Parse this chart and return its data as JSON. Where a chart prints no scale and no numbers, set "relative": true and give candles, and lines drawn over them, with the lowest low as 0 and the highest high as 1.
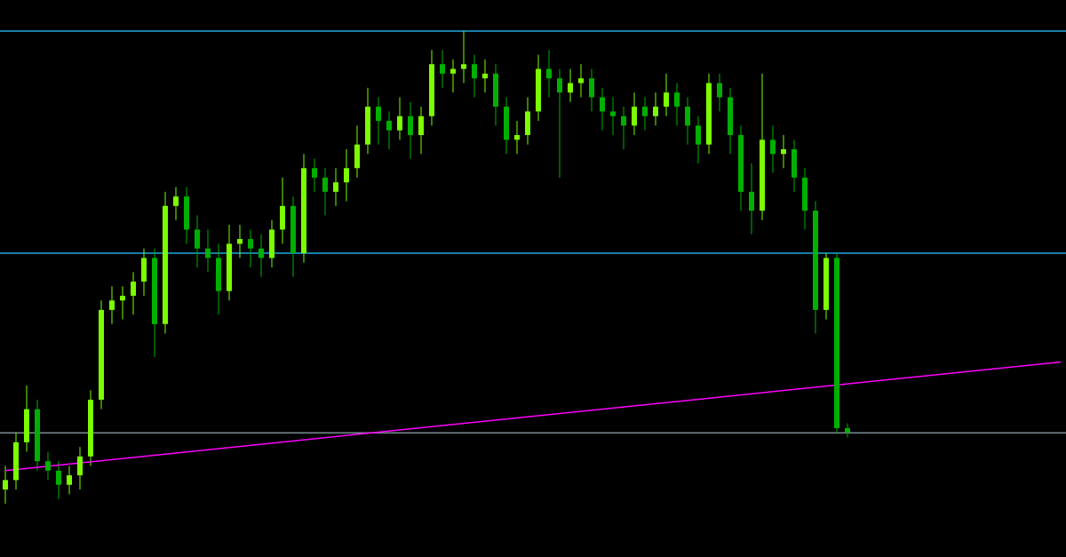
{
  "chart_data": {
    "type": "candlestick",
    "relative": true,
    "legend": false,
    "categories": [
      null,
      null,
      null,
      null,
      null,
      null,
      null,
      null,
      null,
      null,
      null,
      null,
      null,
      null,
      null,
      null,
      null,
      null,
      null,
      null,
      null,
      null,
      null,
      null,
      null,
      null,
      null,
      null,
      null,
      null,
      null,
      null,
      null,
      null,
      null,
      null,
      null,
      null,
      null,
      null,
      null,
      null,
      null,
      null,
      null,
      null,
      null,
      null,
      null,
      null,
      null,
      null,
      null,
      null,
      null,
      null,
      null,
      null,
      null,
      null,
      null,
      null,
      null,
      null,
      null,
      null,
      null,
      null,
      null,
      null,
      null,
      null,
      null,
      null,
      null,
      null,
      null,
      null,
      null,
      null,
      null,
      null,
      null,
      null,
      null,
      null,
      null,
      null,
      null,
      null,
      null,
      null,
      null,
      null,
      null,
      null,
      null,
      null,
      null,
      null
    ],
    "series": [
      {
        "type": "candlestick",
        "colors": [
          "#7cfc00",
          "#7cfc00",
          "#7cfc00",
          "#00b000",
          "#00b000",
          "#00b000",
          "#7cfc00",
          "#7cfc00",
          "#7cfc00",
          "#7cfc00",
          "#7cfc00",
          "#7cfc00",
          "#7cfc00",
          "#7cfc00",
          "#00b000",
          "#7cfc00",
          "#7cfc00",
          "#00b000",
          "#00b000",
          "#00b000",
          "#00b000",
          "#7cfc00",
          "#7cfc00",
          "#00b000",
          "#00b000",
          "#7cfc00",
          "#7cfc00",
          "#00b000",
          "#7cfc00",
          "#00b000",
          "#00b000",
          "#7cfc00",
          "#7cfc00",
          "#7cfc00",
          "#7cfc00",
          "#00b000",
          "#00b000",
          "#7cfc00",
          "#00b000",
          "#7cfc00",
          "#7cfc00",
          "#00b000",
          "#7cfc00",
          "#7cfc00",
          "#00b000",
          "#7cfc00",
          "#00b000",
          "#00b000",
          "#7cfc00",
          "#7cfc00",
          "#7cfc00",
          "#00b000",
          "#00b000",
          "#7cfc00",
          "#7cfc00",
          "#00b000",
          "#00b000",
          "#00b000",
          "#00b000",
          "#7cfc00",
          "#00b000",
          "#7cfc00",
          "#7cfc00",
          "#00b000",
          "#00b000",
          "#00b000",
          "#7cfc00",
          "#00b000",
          "#00b000",
          "#00b000",
          "#00b000",
          "#7cfc00",
          "#00b000",
          "#7cfc00",
          "#00b000",
          "#00b000",
          "#00b000",
          "#7cfc00",
          "#00b000",
          "#00b000",
          null,
          null,
          null,
          null,
          null,
          null,
          null,
          null,
          null,
          null,
          null,
          null,
          null,
          null,
          null,
          null,
          null,
          null,
          null,
          null
        ],
        "ohlc": [
          [
            0.03,
            0.08,
            0,
            0.05
          ],
          [
            0.05,
            0.15,
            0.03,
            0.13
          ],
          [
            0.13,
            0.25,
            0.11,
            0.2
          ],
          [
            0.2,
            0.22,
            0.07,
            0.09
          ],
          [
            0.09,
            0.11,
            0.05,
            0.07
          ],
          [
            0.07,
            0.09,
            0.01,
            0.04
          ],
          [
            0.04,
            0.08,
            0.02,
            0.06
          ],
          [
            0.06,
            0.12,
            0.03,
            0.1
          ],
          [
            0.1,
            0.24,
            0.08,
            0.22
          ],
          [
            0.22,
            0.43,
            0.2,
            0.41
          ],
          [
            0.41,
            0.46,
            0.38,
            0.43
          ],
          [
            0.43,
            0.46,
            0.39,
            0.44
          ],
          [
            0.44,
            0.49,
            0.4,
            0.47
          ],
          [
            0.47,
            0.54,
            0.44,
            0.52
          ],
          [
            0.52,
            0.54,
            0.31,
            0.38
          ],
          [
            0.38,
            0.66,
            0.36,
            0.63
          ],
          [
            0.63,
            0.67,
            0.6,
            0.65
          ],
          [
            0.65,
            0.67,
            0.55,
            0.58
          ],
          [
            0.58,
            0.61,
            0.5,
            0.54
          ],
          [
            0.54,
            0.58,
            0.49,
            0.52
          ],
          [
            0.52,
            0.55,
            0.4,
            0.45
          ],
          [
            0.45,
            0.59,
            0.43,
            0.55
          ],
          [
            0.55,
            0.59,
            0.52,
            0.56
          ],
          [
            0.56,
            0.58,
            0.5,
            0.54
          ],
          [
            0.54,
            0.57,
            0.48,
            0.52
          ],
          [
            0.52,
            0.6,
            0.5,
            0.58
          ],
          [
            0.58,
            0.69,
            0.55,
            0.63
          ],
          [
            0.63,
            0.65,
            0.48,
            0.53
          ],
          [
            0.53,
            0.74,
            0.51,
            0.71
          ],
          [
            0.71,
            0.73,
            0.66,
            0.69
          ],
          [
            0.69,
            0.71,
            0.61,
            0.66
          ],
          [
            0.66,
            0.71,
            0.63,
            0.68
          ],
          [
            0.68,
            0.75,
            0.64,
            0.71
          ],
          [
            0.71,
            0.8,
            0.69,
            0.76
          ],
          [
            0.76,
            0.88,
            0.74,
            0.84
          ],
          [
            0.84,
            0.86,
            0.76,
            0.81
          ],
          [
            0.81,
            0.83,
            0.75,
            0.79
          ],
          [
            0.79,
            0.86,
            0.77,
            0.82
          ],
          [
            0.82,
            0.85,
            0.73,
            0.78
          ],
          [
            0.78,
            0.84,
            0.74,
            0.82
          ],
          [
            0.82,
            0.96,
            0.8,
            0.93
          ],
          [
            0.93,
            0.96,
            0.88,
            0.91
          ],
          [
            0.91,
            0.94,
            0.87,
            0.92
          ],
          [
            0.92,
            1.0,
            0.89,
            0.93
          ],
          [
            0.93,
            0.95,
            0.86,
            0.9
          ],
          [
            0.9,
            0.94,
            0.87,
            0.91
          ],
          [
            0.91,
            0.93,
            0.8,
            0.84
          ],
          [
            0.84,
            0.86,
            0.74,
            0.77
          ],
          [
            0.77,
            0.81,
            0.74,
            0.78
          ],
          [
            0.78,
            0.86,
            0.76,
            0.83
          ],
          [
            0.83,
            0.95,
            0.81,
            0.92
          ],
          [
            0.92,
            0.96,
            0.86,
            0.9
          ],
          [
            0.9,
            0.92,
            0.69,
            0.87
          ],
          [
            0.87,
            0.92,
            0.85,
            0.89
          ],
          [
            0.89,
            0.93,
            0.86,
            0.9
          ],
          [
            0.9,
            0.92,
            0.83,
            0.86
          ],
          [
            0.86,
            0.88,
            0.79,
            0.83
          ],
          [
            0.83,
            0.86,
            0.78,
            0.82
          ],
          [
            0.82,
            0.84,
            0.75,
            0.8
          ],
          [
            0.8,
            0.87,
            0.78,
            0.84
          ],
          [
            0.84,
            0.86,
            0.79,
            0.82
          ],
          [
            0.82,
            0.87,
            0.8,
            0.84
          ],
          [
            0.84,
            0.91,
            0.82,
            0.87
          ],
          [
            0.87,
            0.89,
            0.8,
            0.84
          ],
          [
            0.84,
            0.86,
            0.76,
            0.8
          ],
          [
            0.8,
            0.82,
            0.72,
            0.76
          ],
          [
            0.76,
            0.91,
            0.74,
            0.89
          ],
          [
            0.89,
            0.91,
            0.83,
            0.86
          ],
          [
            0.86,
            0.88,
            0.74,
            0.78
          ],
          [
            0.78,
            0.8,
            0.62,
            0.66
          ],
          [
            0.66,
            0.72,
            0.57,
            0.62
          ],
          [
            0.62,
            0.91,
            0.6,
            0.77
          ],
          [
            0.77,
            0.8,
            0.7,
            0.74
          ],
          [
            0.74,
            0.78,
            0.71,
            0.75
          ],
          [
            0.75,
            0.77,
            0.66,
            0.69
          ],
          [
            0.69,
            0.71,
            0.58,
            0.62
          ],
          [
            0.62,
            0.64,
            0.36,
            0.41
          ],
          [
            0.41,
            0.53,
            0.39,
            0.52
          ],
          [
            0.52,
            0.53,
            0.15,
            0.16
          ],
          [
            0.16,
            0.17,
            0.14,
            0.15
          ],
          null,
          null,
          null,
          null,
          null,
          null,
          null,
          null,
          null,
          null,
          null,
          null,
          null,
          null,
          null,
          null,
          null,
          null,
          null,
          null
        ]
      },
      {
        "type": "line",
        "color": "#ff00ff",
        "marker": "none",
        "values": [
          0.07,
          null,
          null,
          null,
          null,
          null,
          null,
          null,
          null,
          null,
          null,
          null,
          null,
          null,
          null,
          null,
          null,
          null,
          null,
          null,
          null,
          null,
          null,
          null,
          null,
          null,
          null,
          null,
          null,
          null,
          null,
          null,
          null,
          null,
          null,
          null,
          null,
          null,
          null,
          null,
          null,
          null,
          null,
          null,
          null,
          null,
          null,
          null,
          null,
          null,
          null,
          null,
          null,
          null,
          null,
          null,
          null,
          null,
          null,
          null,
          null,
          null,
          null,
          null,
          null,
          null,
          null,
          null,
          null,
          null,
          null,
          null,
          null,
          null,
          null,
          null,
          null,
          null,
          null,
          null,
          null,
          null,
          null,
          null,
          null,
          null,
          null,
          null,
          null,
          null,
          null,
          null,
          null,
          null,
          null,
          null,
          null,
          null,
          null,
          0.3
        ]
      }
    ],
    "ref_lines": [
      {
        "axis": "y",
        "value": 1.0,
        "color": "#1fa8e0"
      },
      {
        "axis": "y",
        "value": 0.53,
        "color": "#1fa8e0"
      },
      {
        "axis": "y",
        "value": 0.15,
        "color": "#7a8a90"
      }
    ]
  }
}
